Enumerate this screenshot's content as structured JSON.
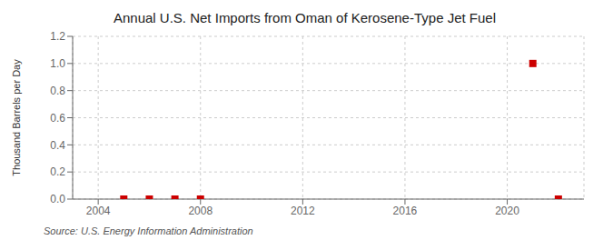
{
  "chart_data": {
    "type": "scatter",
    "title": "Annual U.S. Net Imports from Oman of Kerosene-Type Jet Fuel",
    "ylabel": "Thousand Barrels per Day",
    "annotations": [
      "Source: U.S. Energy Information Administration"
    ],
    "x": [
      2005,
      2006,
      2007,
      2008,
      2021,
      2022
    ],
    "values": [
      0.0,
      0.0,
      0.0,
      0.0,
      1.0,
      0.0
    ],
    "color": "#cc0000",
    "marker": "square",
    "xlim": [
      2003,
      2023
    ],
    "xticks": [
      2004,
      2008,
      2012,
      2016,
      2020
    ],
    "ylim": [
      0.0,
      1.2
    ],
    "yticks": [
      {
        "value": 0.0,
        "label": "0.0"
      },
      0.2,
      0.4,
      0.6,
      0.8,
      {
        "value": 1.0,
        "label": "1.0"
      },
      1.2
    ],
    "grid": true
  }
}
